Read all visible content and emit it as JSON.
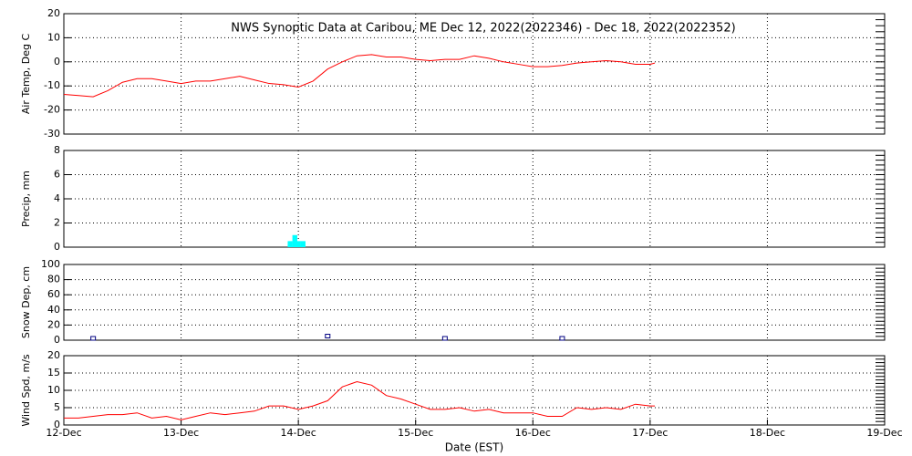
{
  "chart_data": [
    {
      "type": "line",
      "title": "NWS Synoptic Data at Caribou, ME   Dec 12, 2022(2022346) - Dec 18, 2022(2022352)",
      "ylabel": "Air Temp, Deg C",
      "x": [
        0,
        0.125,
        0.25,
        0.375,
        0.5,
        0.625,
        0.75,
        0.875,
        1,
        1.125,
        1.25,
        1.375,
        1.5,
        1.625,
        1.75,
        1.875,
        2,
        2.125,
        2.25,
        2.375,
        2.5,
        2.625,
        2.75,
        2.875,
        3,
        3.125,
        3.25,
        3.375,
        3.5,
        3.625,
        3.75,
        3.875,
        4,
        4.125,
        4.25,
        4.375,
        4.5,
        4.625,
        4.75,
        4.875,
        5,
        5.04
      ],
      "values": [
        -13.5,
        -14,
        -14.5,
        -12,
        -8.5,
        -7,
        -7,
        -8,
        -9,
        -8,
        -8,
        -7,
        -6,
        -7.5,
        -9,
        -9.5,
        -10.5,
        -8,
        -3,
        0,
        2.5,
        3,
        2,
        2,
        1,
        0.5,
        1,
        1,
        2.5,
        1.5,
        0,
        -1,
        -2,
        -2,
        -1.5,
        -0.5,
        0,
        0.5,
        0,
        -1,
        -1,
        -0.5
      ],
      "color": "#ff0000",
      "xlim": [
        0,
        7
      ],
      "ylim": [
        -30,
        20
      ],
      "yticks": [
        -30,
        -20,
        -10,
        0,
        10,
        20
      ],
      "grid": true
    },
    {
      "type": "bar",
      "ylabel": "Precip, mm",
      "x": [
        1.93,
        1.97,
        2.0,
        2.04
      ],
      "values": [
        0.5,
        1,
        0.5,
        0.5
      ],
      "color": "#00ffff",
      "xlim": [
        0,
        7
      ],
      "ylim": [
        0,
        8
      ],
      "yticks": [
        0,
        2,
        4,
        6,
        8
      ],
      "grid": true
    },
    {
      "type": "scatter",
      "ylabel": "Snow Dep, cm",
      "x": [
        0.25,
        2.25,
        3.25,
        4.25
      ],
      "values": [
        0,
        3,
        0,
        0
      ],
      "color": "#000080",
      "xlim": [
        0,
        7
      ],
      "ylim": [
        0,
        100
      ],
      "yticks": [
        0,
        20,
        40,
        60,
        80,
        100
      ],
      "grid": true
    },
    {
      "type": "line",
      "ylabel": "Wind Spd, m/s",
      "xlabel": "Date (EST)",
      "x": [
        0,
        0.125,
        0.25,
        0.375,
        0.5,
        0.625,
        0.75,
        0.875,
        1,
        1.125,
        1.25,
        1.375,
        1.5,
        1.625,
        1.75,
        1.875,
        2,
        2.125,
        2.25,
        2.375,
        2.5,
        2.625,
        2.75,
        2.875,
        3,
        3.125,
        3.25,
        3.375,
        3.5,
        3.625,
        3.75,
        3.875,
        4,
        4.125,
        4.25,
        4.375,
        4.5,
        4.625,
        4.75,
        4.875,
        5,
        5.04
      ],
      "values": [
        2,
        2,
        2.5,
        3,
        3,
        3.5,
        2,
        2.5,
        1.5,
        2.5,
        3.5,
        3,
        3.5,
        4,
        5.5,
        5.5,
        4.5,
        5.5,
        7,
        11,
        12.5,
        11.5,
        8.5,
        7.5,
        6,
        4.5,
        4.5,
        5,
        4,
        4.5,
        3.5,
        3.5,
        3.5,
        2.5,
        2.5,
        5,
        4.5,
        5,
        4.5,
        6,
        5.5,
        5.5
      ],
      "color": "#ff0000",
      "xlim": [
        0,
        7
      ],
      "ylim": [
        0,
        20
      ],
      "yticks": [
        0,
        5,
        10,
        15,
        20
      ],
      "grid": true,
      "xticks": [
        {
          "value": 0,
          "label": "12-Dec"
        },
        {
          "value": 1,
          "label": "13-Dec"
        },
        {
          "value": 2,
          "label": "14-Dec"
        },
        {
          "value": 3,
          "label": "15-Dec"
        },
        {
          "value": 4,
          "label": "16-Dec"
        },
        {
          "value": 5,
          "label": "17-Dec"
        },
        {
          "value": 6,
          "label": "18-Dec"
        },
        {
          "value": 7,
          "label": "19-Dec"
        }
      ]
    }
  ]
}
